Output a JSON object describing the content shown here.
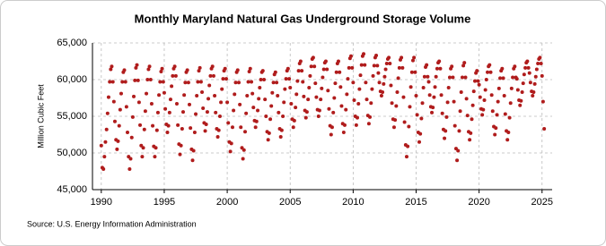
{
  "chart_data": {
    "type": "scatter",
    "title": "Monthly Maryland Natural Gas Underground Storage Volume",
    "ylabel": "Million Cubic Feet",
    "source": "Source: U.S. Energy Information Administration",
    "color": "#b01c1c",
    "grid": true,
    "xlim": [
      1989.3,
      2025.8
    ],
    "xticks": [
      1990,
      1995,
      2000,
      2005,
      2010,
      2015,
      2020,
      2025
    ],
    "ylim": [
      45000,
      65000
    ],
    "yticks": [
      {
        "value": 45000,
        "label": "45,000"
      },
      {
        "value": 50000,
        "label": "50,000"
      },
      {
        "value": 55000,
        "label": "55,000"
      },
      {
        "value": 60000,
        "label": "60,000"
      },
      {
        "value": 65000,
        "label": "65,000"
      }
    ],
    "x": [
      1990,
      1990.08,
      1990.17,
      1990.25,
      1990.33,
      1990.42,
      1990.5,
      1990.58,
      1990.67,
      1990.75,
      1990.83,
      1990.92,
      1991,
      1991.08,
      1991.17,
      1991.25,
      1991.33,
      1991.42,
      1991.5,
      1991.58,
      1991.67,
      1991.75,
      1991.83,
      1991.92,
      1992,
      1992.08,
      1992.17,
      1992.25,
      1992.33,
      1992.42,
      1992.5,
      1992.58,
      1992.67,
      1992.75,
      1992.83,
      1992.92,
      1993,
      1993.08,
      1993.17,
      1993.25,
      1993.33,
      1993.42,
      1993.5,
      1993.58,
      1993.67,
      1993.75,
      1993.83,
      1993.92,
      1994,
      1994.08,
      1994.17,
      1994.25,
      1994.33,
      1994.42,
      1994.5,
      1994.58,
      1994.67,
      1994.75,
      1994.83,
      1994.92,
      1995,
      1995.08,
      1995.17,
      1995.25,
      1995.33,
      1995.42,
      1995.5,
      1995.58,
      1995.67,
      1995.75,
      1995.83,
      1995.92,
      1996,
      1996.08,
      1996.17,
      1996.25,
      1996.33,
      1996.42,
      1996.5,
      1996.58,
      1996.67,
      1996.75,
      1996.83,
      1996.92,
      1997,
      1997.08,
      1997.17,
      1997.25,
      1997.33,
      1997.42,
      1997.5,
      1997.58,
      1997.67,
      1997.75,
      1997.83,
      1997.92,
      1998,
      1998.08,
      1998.17,
      1998.25,
      1998.33,
      1998.42,
      1998.5,
      1998.58,
      1998.67,
      1998.75,
      1998.83,
      1998.92,
      1999,
      1999.08,
      1999.17,
      1999.25,
      1999.33,
      1999.42,
      1999.5,
      1999.58,
      1999.67,
      1999.75,
      1999.83,
      1999.92,
      2000,
      2000.08,
      2000.17,
      2000.25,
      2000.33,
      2000.42,
      2000.5,
      2000.58,
      2000.67,
      2000.75,
      2000.83,
      2000.92,
      2001,
      2001.08,
      2001.17,
      2001.25,
      2001.33,
      2001.42,
      2001.5,
      2001.58,
      2001.67,
      2001.75,
      2001.83,
      2001.92,
      2002,
      2002.08,
      2002.17,
      2002.25,
      2002.33,
      2002.42,
      2002.5,
      2002.58,
      2002.67,
      2002.75,
      2002.83,
      2002.92,
      2003,
      2003.08,
      2003.17,
      2003.25,
      2003.33,
      2003.42,
      2003.5,
      2003.58,
      2003.67,
      2003.75,
      2003.83,
      2003.92,
      2004,
      2004.08,
      2004.17,
      2004.25,
      2004.33,
      2004.42,
      2004.5,
      2004.58,
      2004.67,
      2004.75,
      2004.83,
      2004.92,
      2005,
      2005.08,
      2005.17,
      2005.25,
      2005.33,
      2005.42,
      2005.5,
      2005.58,
      2005.67,
      2005.75,
      2005.83,
      2005.92,
      2006,
      2006.08,
      2006.17,
      2006.25,
      2006.33,
      2006.42,
      2006.5,
      2006.58,
      2006.67,
      2006.75,
      2006.83,
      2006.92,
      2007,
      2007.08,
      2007.17,
      2007.25,
      2007.33,
      2007.42,
      2007.5,
      2007.58,
      2007.67,
      2007.75,
      2007.83,
      2007.92,
      2008,
      2008.08,
      2008.17,
      2008.25,
      2008.33,
      2008.42,
      2008.5,
      2008.58,
      2008.67,
      2008.75,
      2008.83,
      2008.92,
      2009,
      2009.08,
      2009.17,
      2009.25,
      2009.33,
      2009.42,
      2009.5,
      2009.58,
      2009.67,
      2009.75,
      2009.83,
      2009.92,
      2010,
      2010.08,
      2010.17,
      2010.25,
      2010.33,
      2010.42,
      2010.5,
      2010.58,
      2010.67,
      2010.75,
      2010.83,
      2010.92,
      2011,
      2011.08,
      2011.17,
      2011.25,
      2011.33,
      2011.42,
      2011.5,
      2011.58,
      2011.67,
      2011.75,
      2011.83,
      2011.92,
      2012,
      2012.08,
      2012.17,
      2012.25,
      2012.33,
      2012.42,
      2012.5,
      2012.58,
      2012.67,
      2012.75,
      2012.83,
      2012.92,
      2013,
      2013.08,
      2013.17,
      2013.25,
      2013.33,
      2013.42,
      2013.5,
      2013.58,
      2013.67,
      2013.75,
      2013.83,
      2013.92,
      2014,
      2014.08,
      2014.17,
      2014.25,
      2014.33,
      2014.42,
      2014.5,
      2014.58,
      2014.67,
      2014.75,
      2014.83,
      2014.92,
      2015,
      2015.08,
      2015.17,
      2015.25,
      2015.33,
      2015.42,
      2015.5,
      2015.58,
      2015.67,
      2015.75,
      2015.83,
      2015.92,
      2016,
      2016.08,
      2016.17,
      2016.25,
      2016.33,
      2016.42,
      2016.5,
      2016.58,
      2016.67,
      2016.75,
      2016.83,
      2016.92,
      2017,
      2017.08,
      2017.17,
      2017.25,
      2017.33,
      2017.42,
      2017.5,
      2017.58,
      2017.67,
      2017.75,
      2017.83,
      2017.92,
      2018,
      2018.08,
      2018.17,
      2018.25,
      2018.33,
      2018.42,
      2018.5,
      2018.58,
      2018.67,
      2018.75,
      2018.83,
      2018.92,
      2019,
      2019.08,
      2019.17,
      2019.25,
      2019.33,
      2019.42,
      2019.5,
      2019.58,
      2019.67,
      2019.75,
      2019.83,
      2019.92,
      2020,
      2020.08,
      2020.17,
      2020.25,
      2020.33,
      2020.42,
      2020.5,
      2020.58,
      2020.67,
      2020.75,
      2020.83,
      2020.92,
      2021,
      2021.08,
      2021.17,
      2021.25,
      2021.33,
      2021.42,
      2021.5,
      2021.58,
      2021.67,
      2021.75,
      2021.83,
      2021.92,
      2022,
      2022.08,
      2022.17,
      2022.25,
      2022.33,
      2022.42,
      2022.5,
      2022.58,
      2022.67,
      2022.75,
      2022.83,
      2022.92,
      2023,
      2023.08,
      2023.17,
      2023.25,
      2023.33,
      2023.42,
      2023.5,
      2023.58,
      2023.67,
      2023.75,
      2023.83,
      2023.92,
      2024,
      2024.08,
      2024.17,
      2024.25,
      2024.33,
      2024.42,
      2024.5,
      2024.58,
      2024.67,
      2024.75,
      2024.83,
      2024.92,
      2025,
      2025.08,
      2025.17
    ],
    "values": [
      51000,
      48000,
      47800,
      49500,
      51500,
      53200,
      55400,
      57600,
      59700,
      61400,
      61800,
      59700,
      57000,
      54300,
      51800,
      50500,
      51600,
      53700,
      55900,
      58100,
      59700,
      61000,
      61300,
      59700,
      56300,
      52800,
      49500,
      47800,
      49200,
      52100,
      54900,
      57700,
      59900,
      61600,
      62000,
      59900,
      56900,
      53800,
      51000,
      49500,
      50700,
      53200,
      55700,
      58100,
      60000,
      61400,
      61800,
      60000,
      56700,
      53700,
      50900,
      49500,
      50700,
      53100,
      55500,
      57900,
      59700,
      61100,
      61500,
      59700,
      58200,
      56000,
      53900,
      52800,
      53700,
      55500,
      57300,
      59100,
      60500,
      61500,
      61800,
      60500,
      56700,
      53800,
      51200,
      49800,
      51000,
      53300,
      55600,
      57900,
      59600,
      61000,
      61300,
      59600,
      56600,
      53400,
      50500,
      49000,
      50300,
      52800,
      55300,
      57800,
      59700,
      61200,
      61600,
      59700,
      58300,
      56100,
      54100,
      53000,
      53900,
      55600,
      57400,
      59200,
      60500,
      61500,
      61800,
      60500,
      57800,
      55500,
      53300,
      52200,
      53100,
      55000,
      56900,
      58700,
      60100,
      61200,
      61500,
      60100,
      56900,
      54100,
      51500,
      50200,
      51300,
      53500,
      55800,
      58000,
      59600,
      61000,
      61300,
      59600,
      56600,
      53500,
      50700,
      49200,
      50400,
      52900,
      55400,
      57800,
      59700,
      61100,
      61500,
      59700,
      58100,
      56200,
      54400,
      53500,
      54300,
      55800,
      57400,
      58900,
      60000,
      61000,
      61200,
      60000,
      57300,
      55000,
      52900,
      51800,
      52700,
      54600,
      56400,
      58200,
      59600,
      60700,
      61000,
      59600,
      57800,
      55500,
      53300,
      52200,
      53100,
      55000,
      56900,
      58700,
      60100,
      61200,
      61500,
      60100,
      58900,
      56700,
      54600,
      53500,
      54400,
      56200,
      58000,
      59800,
      61200,
      62200,
      62500,
      61200,
      59700,
      57700,
      55800,
      54800,
      55600,
      57300,
      58900,
      60500,
      61800,
      62800,
      63000,
      61800,
      59500,
      57600,
      55900,
      55000,
      55800,
      57300,
      58800,
      60300,
      61400,
      62300,
      62500,
      61400,
      58500,
      56000,
      53700,
      52500,
      53500,
      55500,
      57500,
      59500,
      61000,
      62200,
      62500,
      61000,
      59000,
      56400,
      54000,
      52800,
      53800,
      55900,
      58000,
      60100,
      61600,
      62900,
      63200,
      61600,
      59600,
      57200,
      55000,
      53800,
      54800,
      56700,
      58700,
      60600,
      62000,
      63200,
      63500,
      62000,
      59600,
      57300,
      55100,
      54000,
      54900,
      56800,
      58700,
      60500,
      61900,
      63000,
      63300,
      61900,
      60900,
      59600,
      58400,
      57800,
      58300,
      59400,
      60400,
      61400,
      62200,
      62800,
      63000,
      62200,
      59200,
      56800,
      54600,
      53500,
      54500,
      56400,
      58300,
      60200,
      61600,
      62700,
      63000,
      61600,
      57600,
      54200,
      51100,
      49500,
      50900,
      53600,
      56300,
      59000,
      61000,
      62600,
      63000,
      61000,
      57800,
      55200,
      52800,
      51500,
      52600,
      54700,
      56800,
      58900,
      60400,
      61700,
      62000,
      60400,
      59700,
      57900,
      56300,
      55500,
      56200,
      57600,
      59000,
      60400,
      61500,
      62300,
      62500,
      61500,
      57900,
      55400,
      53200,
      52000,
      53000,
      54900,
      56900,
      58900,
      60300,
      61500,
      61800,
      60300,
      57000,
      53700,
      50600,
      49000,
      50300,
      53000,
      55700,
      58300,
      60300,
      61900,
      62300,
      60300,
      57400,
      55100,
      52900,
      51800,
      52700,
      54600,
      56500,
      58400,
      59800,
      60900,
      61200,
      59800,
      59300,
      57600,
      56000,
      55200,
      55900,
      57200,
      58600,
      60000,
      61000,
      61800,
      62000,
      61000,
      57900,
      55700,
      53600,
      52500,
      53400,
      55200,
      57000,
      58800,
      60200,
      61200,
      61500,
      60200,
      57800,
      55300,
      53000,
      51800,
      52800,
      54800,
      56800,
      58800,
      60300,
      61500,
      61800,
      60300,
      60100,
      58600,
      57200,
      56500,
      57100,
      58300,
      59500,
      60700,
      61600,
      62300,
      62500,
      61600,
      60900,
      59600,
      58400,
      57800,
      58300,
      59400,
      60400,
      61400,
      62200,
      62800,
      63000,
      62200,
      60500,
      57000,
      53300
    ]
  }
}
